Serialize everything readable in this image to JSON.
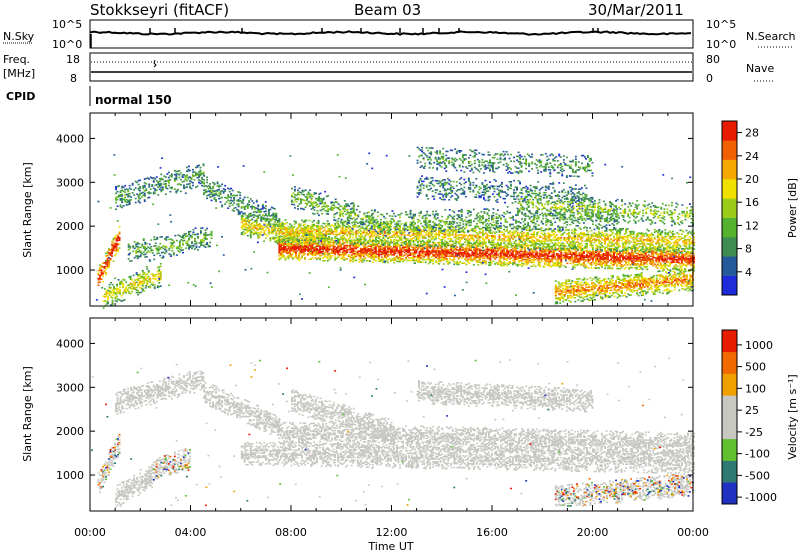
{
  "header": {
    "station": "Stokkseyri (fitACF)",
    "beam": "Beam 03",
    "date": "30/Mar/2011"
  },
  "top_panels": {
    "nsky_label": "N.Sky",
    "nsearch_label": "N.Search",
    "noise_ticks_left": [
      "10^5",
      "10^0"
    ],
    "noise_ticks_right": [
      "10^5",
      "10^0"
    ],
    "freq_label": "Freq.",
    "freq_unit": "[MHz]",
    "freq_ticks": [
      "18",
      "8"
    ],
    "nave_label": "Nave",
    "nave_ticks": [
      "80",
      "0"
    ],
    "cpid_label": "CPID",
    "cpid_value": "normal 150"
  },
  "chart_data": [
    {
      "type": "heatmap",
      "name": "power",
      "ylabel": "Slant Range [km]",
      "xlabel": "Time UT",
      "x_ticks": [
        "00:00",
        "04:00",
        "08:00",
        "12:00",
        "16:00",
        "20:00",
        "00:00"
      ],
      "x_range_hours": [
        0,
        24
      ],
      "y_ticks": [
        "1000",
        "2000",
        "3000",
        "4000"
      ],
      "y_range_km": [
        180,
        4580
      ],
      "colorbar": {
        "label": "Power [dB]",
        "ticks": [
          "4",
          "8",
          "12",
          "16",
          "20",
          "24",
          "28"
        ],
        "range": [
          0,
          30
        ],
        "colors": [
          "#1f2bd8",
          "#245a9a",
          "#3e8c50",
          "#55b22e",
          "#9ccc1a",
          "#f0e000",
          "#f5a800",
          "#f06000",
          "#e81c00"
        ]
      },
      "bands": [
        {
          "t0": 0.3,
          "t1": 1.2,
          "r0": 800,
          "r1": 1800,
          "level": 0.9,
          "density": 0.8
        },
        {
          "t0": 0.5,
          "t1": 2.8,
          "r0": 400,
          "r1": 900,
          "level": 0.55,
          "density": 0.5
        },
        {
          "t0": 1.0,
          "t1": 4.5,
          "r0": 2650,
          "r1": 3200,
          "level": 0.3,
          "density": 0.45
        },
        {
          "t0": 1.5,
          "t1": 4.8,
          "r0": 1400,
          "r1": 1750,
          "level": 0.35,
          "density": 0.35
        },
        {
          "t0": 4.5,
          "t1": 7.5,
          "r0": 2900,
          "r1": 2100,
          "level": 0.3,
          "density": 0.45
        },
        {
          "t0": 6.0,
          "t1": 9.5,
          "r0": 2050,
          "r1": 1600,
          "level": 0.6,
          "density": 0.6
        },
        {
          "t0": 7.5,
          "t1": 24.0,
          "r0": 1500,
          "r1": 1250,
          "level": 0.85,
          "density": 0.85
        },
        {
          "t0": 7.5,
          "t1": 24.0,
          "r0": 1900,
          "r1": 1650,
          "level": 0.6,
          "density": 0.6
        },
        {
          "t0": 8.0,
          "t1": 12.0,
          "r0": 2700,
          "r1": 2000,
          "level": 0.4,
          "density": 0.45
        },
        {
          "t0": 12.0,
          "t1": 21.0,
          "r0": 2100,
          "r1": 2200,
          "level": 0.35,
          "density": 0.3
        },
        {
          "t0": 13.0,
          "t1": 20.0,
          "r0": 2900,
          "r1": 2700,
          "level": 0.25,
          "density": 0.3
        },
        {
          "t0": 13.0,
          "t1": 20.0,
          "r0": 3550,
          "r1": 3350,
          "level": 0.3,
          "density": 0.3
        },
        {
          "t0": 18.5,
          "t1": 24.0,
          "r0": 500,
          "r1": 800,
          "level": 0.7,
          "density": 0.7
        },
        {
          "t0": 17.0,
          "t1": 24.0,
          "r0": 2500,
          "r1": 2250,
          "level": 0.45,
          "density": 0.35
        }
      ]
    },
    {
      "type": "heatmap",
      "name": "velocity",
      "ylabel": "Slant Range [km]",
      "xlabel": "Time UT",
      "x_ticks": [
        "00:00",
        "04:00",
        "08:00",
        "12:00",
        "16:00",
        "20:00",
        "00:00"
      ],
      "x_range_hours": [
        0,
        24
      ],
      "y_ticks": [
        "1000",
        "2000",
        "3000",
        "4000"
      ],
      "y_range_km": [
        180,
        4580
      ],
      "colorbar": {
        "label": "Velocity [m s⁻¹]",
        "ticks": [
          "1000",
          "500",
          "100",
          "25",
          "-25",
          "-100",
          "-500",
          "-1000"
        ],
        "colors": [
          "#2030c0",
          "#2e7a72",
          "#60c030",
          "#c8c8c2",
          "#c8c8c2",
          "#f0a000",
          "#f06a00",
          "#e81c00"
        ]
      },
      "ground_scatter_color": "#c8c8c2",
      "bands": [
        {
          "t0": 0.3,
          "t1": 1.2,
          "r0": 800,
          "r1": 1800,
          "kind": "mixed"
        },
        {
          "t0": 1.0,
          "t1": 2.5,
          "r0": 500,
          "r1": 1000,
          "kind": "ground"
        },
        {
          "t0": 1.0,
          "t1": 4.5,
          "r0": 2650,
          "r1": 3200,
          "kind": "ground"
        },
        {
          "t0": 4.5,
          "t1": 7.5,
          "r0": 2900,
          "r1": 2100,
          "kind": "ground"
        },
        {
          "t0": 6.0,
          "t1": 24.0,
          "r0": 1500,
          "r1": 1300,
          "kind": "ground"
        },
        {
          "t0": 7.5,
          "t1": 24.0,
          "r0": 1950,
          "r1": 1700,
          "kind": "ground"
        },
        {
          "t0": 8.0,
          "t1": 12.0,
          "r0": 2700,
          "r1": 2000,
          "kind": "ground"
        },
        {
          "t0": 13.0,
          "t1": 20.0,
          "r0": 2900,
          "r1": 2700,
          "kind": "ground"
        },
        {
          "t0": 18.5,
          "t1": 24.0,
          "r0": 500,
          "r1": 800,
          "kind": "mixed"
        },
        {
          "t0": 2.5,
          "t1": 4.0,
          "r0": 1100,
          "r1": 1400,
          "kind": "mixed"
        }
      ]
    }
  ]
}
